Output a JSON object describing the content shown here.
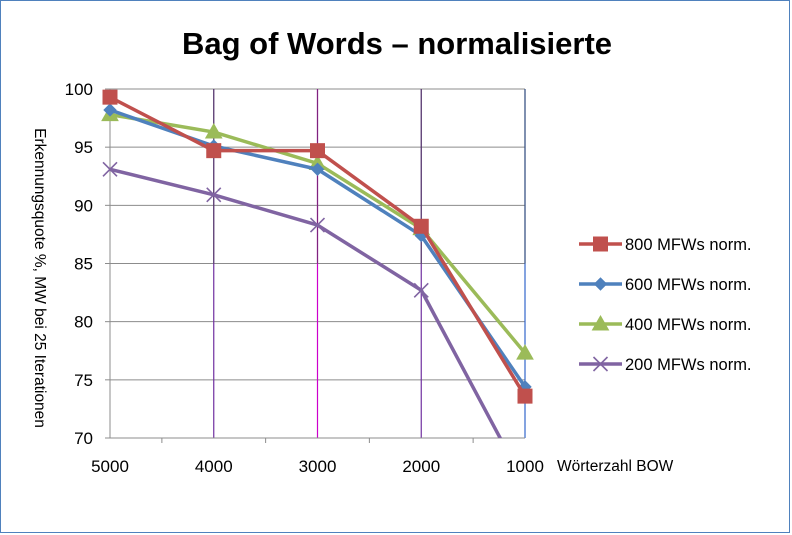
{
  "chart_data": {
    "type": "line",
    "title": "Bag of Words – normalisierte",
    "xlabel": "Wörterzahl BOW",
    "ylabel": "Erkennungsquote %, MW bei 25 Iterationen",
    "categories": [
      "5000",
      "4000",
      "3000",
      "2000",
      "1000"
    ],
    "ylim": [
      70,
      100
    ],
    "yticks": [
      70,
      75,
      80,
      85,
      90,
      95,
      100
    ],
    "grid": "horizontal and vertical",
    "legend_position": "right",
    "series": [
      {
        "name": "800 MFWs norm.",
        "values": [
          99.3,
          94.7,
          94.7,
          88.2,
          73.6
        ],
        "color": "#c0504d",
        "marker": "square"
      },
      {
        "name": "600 MFWs norm.",
        "values": [
          98.2,
          95.1,
          93.1,
          87.4,
          74.4
        ],
        "color": "#4f81bd",
        "marker": "diamond"
      },
      {
        "name": "400 MFWs norm.",
        "values": [
          97.8,
          96.3,
          93.6,
          88.0,
          77.3
        ],
        "color": "#9bbb59",
        "marker": "triangle"
      },
      {
        "name": "200 MFWs norm.",
        "values": [
          93.1,
          90.9,
          88.3,
          82.7,
          66.0
        ],
        "color": "#8064a2",
        "marker": "x"
      }
    ],
    "vertical_gridline_colors": [
      "#3366cc",
      "#7030a0",
      "#cc00cc",
      "#7030a0",
      "#3366cc"
    ]
  }
}
